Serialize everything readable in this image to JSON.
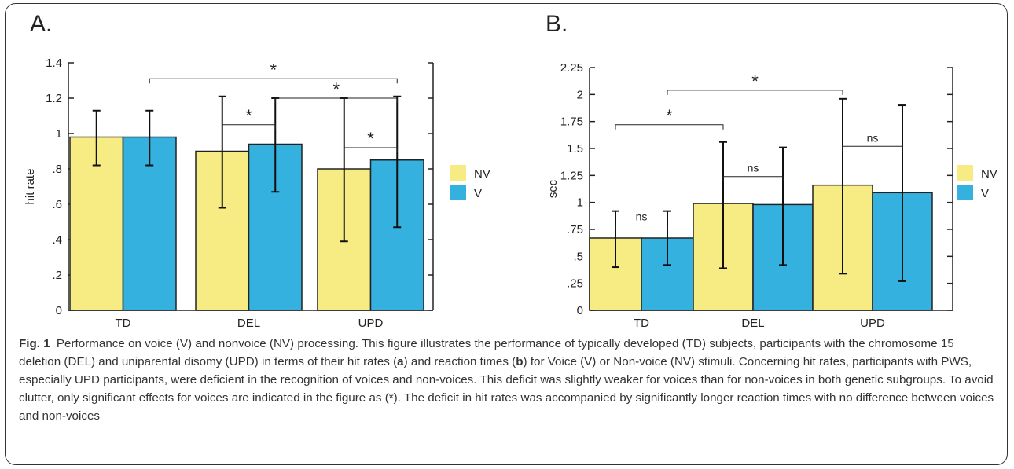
{
  "colors": {
    "NV": "#f7ec83",
    "V": "#35b1e0",
    "axis": "#222222",
    "error": "#111111"
  },
  "panels": [
    {
      "letter": "A."
    },
    {
      "letter": "B."
    }
  ],
  "chart_data": [
    {
      "type": "bar",
      "panel": "A",
      "title": "",
      "xlabel": "",
      "ylabel": "hit rate",
      "ylim": [
        0,
        1.4
      ],
      "yticks": [
        0,
        0.2,
        0.4,
        0.6,
        0.8,
        1,
        1.2,
        1.4
      ],
      "ytick_labels": [
        "0",
        ".2",
        ".4",
        ".6",
        ".8",
        "1",
        "1.2",
        "1.4"
      ],
      "categories": [
        "TD",
        "DEL",
        "UPD"
      ],
      "series": [
        {
          "name": "NV",
          "values": [
            0.98,
            0.9,
            0.8
          ],
          "err_low": [
            0.82,
            0.58,
            0.39
          ],
          "err_high": [
            1.13,
            1.21,
            1.2
          ]
        },
        {
          "name": "V",
          "values": [
            0.98,
            0.94,
            0.85
          ],
          "err_low": [
            0.82,
            0.67,
            0.47
          ],
          "err_high": [
            1.13,
            1.2,
            1.21
          ]
        }
      ],
      "legend": [
        "NV",
        "V"
      ],
      "legend_position": "right",
      "annotations": [
        {
          "label": "*",
          "from": "TD.V",
          "to": "UPD.V",
          "level": 1.31
        },
        {
          "label": "*",
          "from": "DEL.V",
          "to": "UPD.V",
          "level": 1.2
        },
        {
          "label": "*",
          "from": "DEL.NV",
          "to": "DEL.V",
          "level": 1.05
        },
        {
          "label": "*",
          "from": "UPD.NV",
          "to": "UPD.V",
          "level": 0.92
        }
      ]
    },
    {
      "type": "bar",
      "panel": "B",
      "title": "",
      "xlabel": "",
      "ylabel": "sec",
      "ylim": [
        0,
        2.25
      ],
      "yticks": [
        0,
        0.25,
        0.5,
        0.75,
        1,
        1.25,
        1.5,
        1.75,
        2,
        2.25
      ],
      "ytick_labels": [
        "0",
        ".25",
        ".5",
        ".75",
        "1",
        "1.25",
        "1.5",
        "1.75",
        "2",
        "2.25"
      ],
      "categories": [
        "TD",
        "DEL",
        "UPD"
      ],
      "series": [
        {
          "name": "NV",
          "values": [
            0.67,
            0.99,
            1.16
          ],
          "err_low": [
            0.4,
            0.39,
            0.34
          ],
          "err_high": [
            0.92,
            1.56,
            1.96
          ]
        },
        {
          "name": "V",
          "values": [
            0.67,
            0.98,
            1.09
          ],
          "err_low": [
            0.42,
            0.42,
            0.27
          ],
          "err_high": [
            0.92,
            1.51,
            1.9
          ]
        }
      ],
      "legend": [
        "NV",
        "V"
      ],
      "legend_position": "right",
      "annotations": [
        {
          "label": "*",
          "from": "TD.V",
          "to": "UPD.NV",
          "level": 2.04
        },
        {
          "label": "*",
          "from": "TD.NV",
          "to": "DEL.NV",
          "level": 1.72
        },
        {
          "label": "ns",
          "from": "DEL.NV",
          "to": "DEL.V",
          "level": 1.24
        },
        {
          "label": "ns",
          "from": "UPD.NV",
          "to": "UPD.V",
          "level": 1.52
        },
        {
          "label": "ns",
          "from": "TD.NV",
          "to": "TD.V",
          "level": 0.79
        }
      ]
    }
  ],
  "caption": {
    "lead": "Fig. 1",
    "title": "Performance on voice (V) and nonvoice (NV) processing.",
    "text_1": "This figure illustrates the performance of typically developed (TD) subjects, participants with the chromosome 15 deletion (DEL) and uniparental disomy (UPD) in terms of their hit rates (",
    "bold_a": "a",
    "text_2": ") and reaction times (",
    "bold_b": "b",
    "text_3": ") for Voice (V) or Non-voice (NV) stimuli. Concerning hit rates, participants with PWS, especially UPD participants, were deficient in the recognition of voices and non-voices. This deficit was slightly weaker for voices than for non-voices in both genetic subgroups. To avoid clutter, only significant effects for voices are indicated in the figure as (*). The deficit in hit rates was accompanied by significantly longer reaction times with no difference between voices and non-voices"
  }
}
